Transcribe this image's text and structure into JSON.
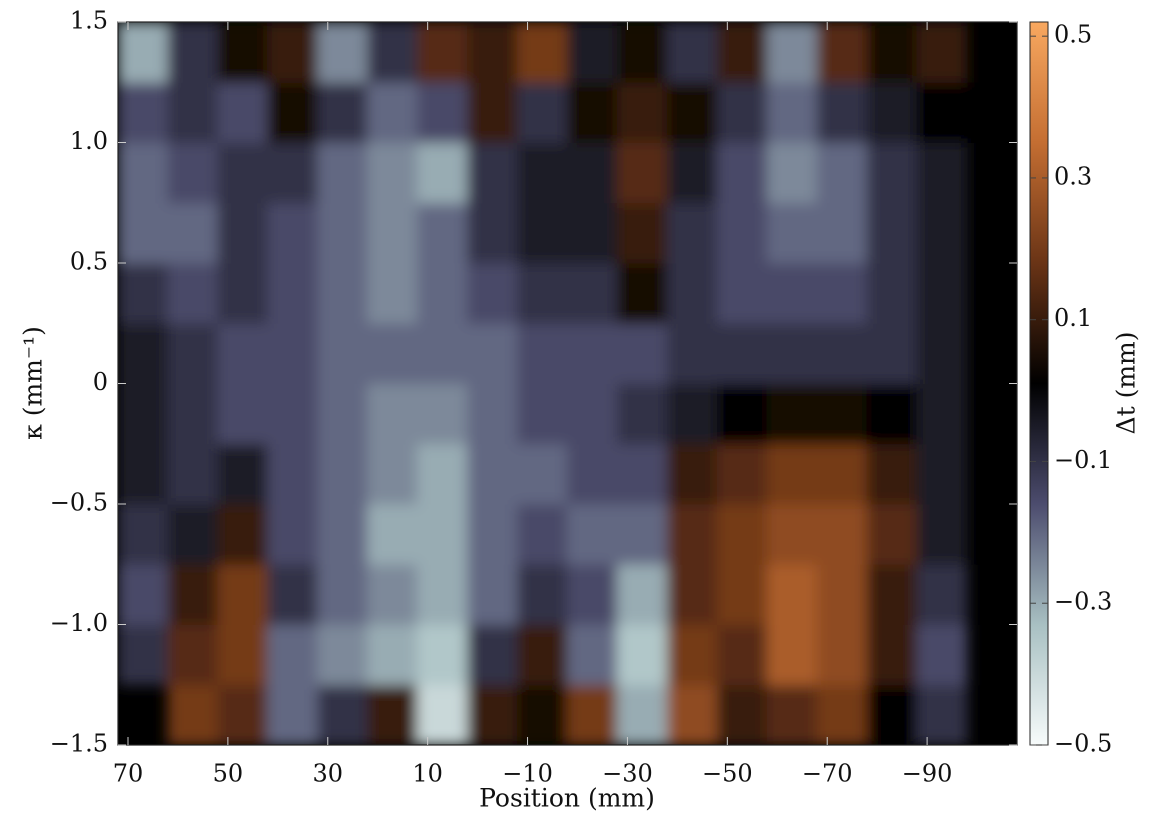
{
  "chart_data": {
    "type": "heatmap",
    "x_label": "Position (mm)",
    "y_label": "κ (mm⁻¹)",
    "colorbar_label": "Δt (mm)",
    "xbins": [
      72,
      62,
      52,
      42,
      32,
      22,
      12,
      2,
      -8,
      -18,
      -28,
      -38,
      -48,
      -58,
      -68,
      -78,
      -88,
      -98,
      -108
    ],
    "ybins": [
      -1.5,
      -1.25,
      -1.0,
      -0.75,
      -0.5,
      -0.25,
      0,
      0.25,
      0.5,
      0.75,
      1.0,
      1.25,
      1.5
    ],
    "values": [
      [
        null,
        0.2,
        0.15,
        -0.2,
        -0.1,
        0.1,
        -0.4,
        0.1,
        0.05,
        0.2,
        -0.3,
        0.25,
        0.1,
        0.15,
        0.2,
        0.0,
        -0.1,
        null
      ],
      [
        -0.1,
        0.15,
        0.2,
        -0.2,
        -0.25,
        -0.3,
        -0.35,
        -0.1,
        0.1,
        -0.2,
        -0.35,
        0.2,
        0.15,
        0.3,
        0.25,
        0.1,
        -0.15,
        null
      ],
      [
        -0.15,
        0.1,
        0.2,
        -0.1,
        -0.2,
        -0.25,
        -0.3,
        -0.2,
        -0.1,
        -0.15,
        -0.3,
        0.15,
        0.2,
        0.3,
        0.25,
        0.1,
        -0.1,
        null
      ],
      [
        -0.1,
        -0.05,
        0.1,
        -0.15,
        -0.2,
        -0.3,
        -0.3,
        -0.2,
        -0.15,
        -0.2,
        -0.2,
        0.15,
        0.2,
        0.25,
        0.25,
        0.15,
        -0.05,
        null
      ],
      [
        -0.05,
        -0.1,
        -0.05,
        -0.15,
        -0.2,
        -0.25,
        -0.3,
        -0.2,
        -0.2,
        -0.15,
        -0.15,
        0.1,
        0.15,
        0.2,
        0.2,
        0.1,
        -0.05,
        null
      ],
      [
        -0.05,
        -0.1,
        -0.15,
        -0.15,
        -0.2,
        -0.25,
        -0.25,
        -0.2,
        -0.15,
        -0.15,
        -0.1,
        -0.05,
        0.0,
        0.05,
        0.05,
        0.0,
        -0.05,
        null
      ],
      [
        -0.05,
        -0.1,
        -0.15,
        -0.15,
        -0.2,
        -0.2,
        -0.2,
        -0.2,
        -0.15,
        -0.15,
        -0.15,
        -0.1,
        -0.1,
        -0.1,
        -0.1,
        -0.1,
        -0.05,
        null
      ],
      [
        -0.1,
        -0.15,
        -0.1,
        -0.15,
        -0.2,
        -0.25,
        -0.2,
        -0.15,
        -0.1,
        -0.1,
        0.05,
        -0.1,
        -0.15,
        -0.15,
        -0.15,
        -0.1,
        -0.05,
        null
      ],
      [
        -0.2,
        -0.2,
        -0.1,
        -0.15,
        -0.2,
        -0.25,
        -0.2,
        -0.1,
        -0.05,
        -0.05,
        0.1,
        -0.1,
        -0.15,
        -0.2,
        -0.2,
        -0.1,
        -0.05,
        null
      ],
      [
        -0.2,
        -0.15,
        -0.1,
        -0.1,
        -0.2,
        -0.25,
        -0.3,
        -0.1,
        -0.05,
        -0.05,
        0.15,
        -0.05,
        -0.15,
        -0.25,
        -0.2,
        -0.1,
        -0.05,
        null
      ],
      [
        -0.15,
        -0.1,
        -0.15,
        0.05,
        -0.1,
        -0.2,
        -0.15,
        0.1,
        -0.1,
        0.05,
        0.1,
        0.05,
        -0.1,
        -0.2,
        -0.1,
        -0.05,
        0.0,
        null
      ],
      [
        -0.3,
        -0.1,
        0.05,
        0.1,
        -0.25,
        -0.1,
        0.15,
        0.1,
        0.2,
        -0.05,
        0.05,
        -0.1,
        0.1,
        -0.25,
        0.15,
        0.05,
        0.1,
        null
      ]
    ],
    "xlim": [
      72,
      -108
    ],
    "ylim": [
      -1.5,
      1.5
    ],
    "clim": [
      -0.5,
      0.52
    ],
    "xticks": [
      70,
      50,
      30,
      10,
      {
        "value": -10,
        "label": "−10"
      },
      {
        "value": -30,
        "label": "−30"
      },
      {
        "value": -50,
        "label": "−50"
      },
      {
        "value": -70,
        "label": "−70"
      },
      {
        "value": -90,
        "label": "−90"
      }
    ],
    "yticks": [
      {
        "value": -1.5,
        "label": "−1.5"
      },
      {
        "value": -1.0,
        "label": "−1.0"
      },
      {
        "value": -0.5,
        "label": "−0.5"
      },
      0,
      0.5,
      {
        "value": 1.0,
        "label": "1.0"
      },
      1.5
    ],
    "cticks": [
      0.5,
      0.3,
      0.1,
      {
        "value": -0.1,
        "label": "−0.1"
      },
      {
        "value": -0.3,
        "label": "−0.3"
      },
      {
        "value": -0.5,
        "label": "−0.5"
      }
    ],
    "colormap": [
      "#f7fbfb",
      "#a8c0c2",
      "#4c4c6e",
      "#000000",
      "#6a3416",
      "#c46e32",
      "#f8a860"
    ],
    "nodata_color": "#000000"
  }
}
